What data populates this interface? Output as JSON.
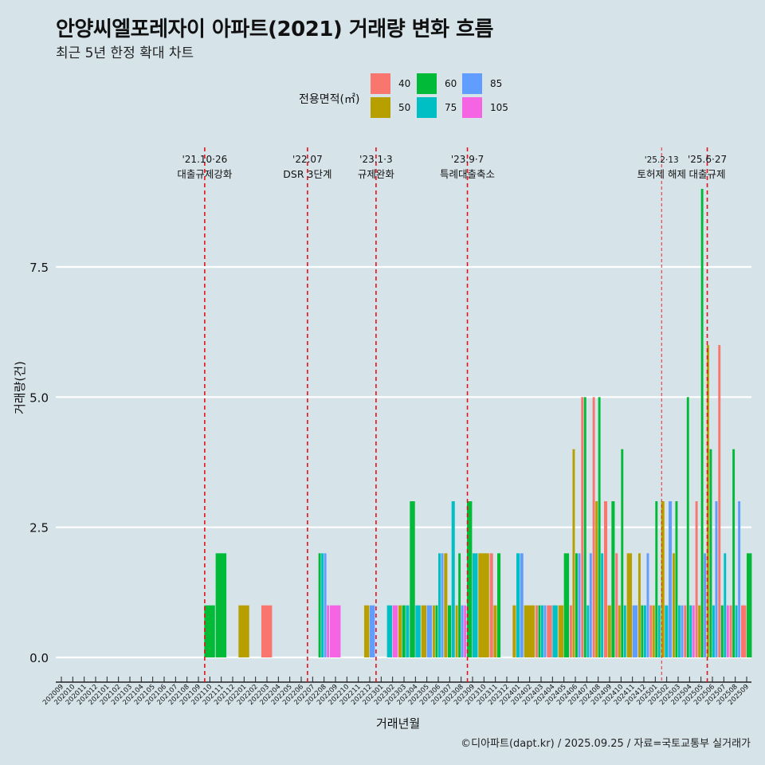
{
  "header": {
    "title": "안양씨엘포레자이 아파트(2021) 거래량 변화 흐름",
    "subtitle": "최근 5년 한정 확대 차트"
  },
  "legend": {
    "title": "전용면적(㎡)",
    "items": [
      {
        "label": "40",
        "color": "#F8766D"
      },
      {
        "label": "50",
        "color": "#B79F00"
      },
      {
        "label": "60",
        "color": "#00BA38"
      },
      {
        "label": "75",
        "color": "#00BFC4"
      },
      {
        "label": "85",
        "color": "#619CFF"
      },
      {
        "label": "105",
        "color": "#F564E3"
      }
    ]
  },
  "caption": "©디아파트(dapt.kr) / 2025.09.25 / 자료=국토교통부 실거래가",
  "chart_data": {
    "type": "bar",
    "title": "안양씨엘포레자이 아파트(2021) 거래량 변화 흐름",
    "subtitle": "최근 5년 한정 확대 차트",
    "xlabel": "거래년월",
    "ylabel": "거래량(건)",
    "ylim": [
      0,
      9
    ],
    "yticks": [
      "0.0",
      "2.5",
      "5.0",
      "7.5"
    ],
    "ytick_values": [
      0,
      2.5,
      5,
      7.5
    ],
    "grid": true,
    "legend_position": "top",
    "categories": [
      "202009",
      "202010",
      "202011",
      "202012",
      "202101",
      "202102",
      "202103",
      "202104",
      "202105",
      "202106",
      "202107",
      "202108",
      "202109",
      "202110",
      "202111",
      "202112",
      "202201",
      "202202",
      "202203",
      "202204",
      "202205",
      "202206",
      "202207",
      "202208",
      "202209",
      "202210",
      "202211",
      "202212",
      "202301",
      "202302",
      "202303",
      "202304",
      "202305",
      "202306",
      "202307",
      "202308",
      "202309",
      "202310",
      "202311",
      "202312",
      "202401",
      "202402",
      "202403",
      "202404",
      "202405",
      "202406",
      "202407",
      "202408",
      "202409",
      "202410",
      "202411",
      "202412",
      "202501",
      "202502",
      "202503",
      "202504",
      "202505",
      "202506",
      "202507",
      "202508",
      "202509"
    ],
    "series_keys": [
      "40",
      "50",
      "60",
      "75",
      "85",
      "105"
    ],
    "data": {
      "202110": {
        "60": 1
      },
      "202111": {
        "60": 2
      },
      "202201": {
        "50": 1
      },
      "202203": {
        "40": 1
      },
      "202208": {
        "60": 2,
        "75": 2,
        "85": 2,
        "105": 1
      },
      "202209": {
        "105": 1
      },
      "202212": {
        "50": 1,
        "85": 1
      },
      "202302": {
        "75": 1,
        "105": 1
      },
      "202303": {
        "50": 1,
        "60": 1,
        "75": 1
      },
      "202304": {
        "60": 3,
        "75": 1
      },
      "202305": {
        "50": 1,
        "85": 1
      },
      "202306": {
        "50": 1,
        "60": 1,
        "75": 2,
        "85": 2
      },
      "202307": {
        "50": 2,
        "60": 1,
        "75": 3
      },
      "202308": {
        "50": 1,
        "60": 2,
        "85": 1,
        "105": 1
      },
      "202309": {
        "60": 3,
        "75": 2
      },
      "202310": {
        "50": 2
      },
      "202311": {
        "40": 2,
        "50": 1,
        "60": 2
      },
      "202401": {
        "50": 1,
        "75": 2,
        "85": 2
      },
      "202402": {
        "50": 1
      },
      "202403": {
        "40": 1,
        "60": 1,
        "75": 1,
        "85": 1
      },
      "202404": {
        "40": 1,
        "75": 1
      },
      "202405": {
        "50": 1,
        "60": 2
      },
      "202406": {
        "40": 1,
        "50": 4,
        "60": 2,
        "85": 2
      },
      "202407": {
        "40": 5,
        "60": 5,
        "75": 1,
        "85": 2
      },
      "202408": {
        "40": 5,
        "50": 3,
        "60": 5,
        "75": 2
      },
      "202409": {
        "40": 3,
        "50": 1,
        "60": 3
      },
      "202410": {
        "40": 2,
        "50": 1,
        "60": 4,
        "75": 1
      },
      "202411": {
        "50": 2,
        "85": 1
      },
      "202412": {
        "50": 2,
        "60": 1,
        "75": 1,
        "85": 2
      },
      "202501": {
        "40": 1,
        "50": 1,
        "60": 3,
        "75": 1
      },
      "202502": {
        "50": 3,
        "75": 1,
        "85": 3
      },
      "202503": {
        "50": 2,
        "60": 3,
        "75": 1,
        "85": 1
      },
      "202504": {
        "40": 1,
        "60": 5,
        "75": 1,
        "105": 1
      },
      "202505": {
        "40": 3,
        "50": 1,
        "60": 9,
        "85": 2
      },
      "202506": {
        "50": 6,
        "60": 4,
        "75": 1,
        "85": 3
      },
      "202507": {
        "40": 6,
        "60": 1,
        "75": 2,
        "105": 1
      },
      "202508": {
        "40": 1,
        "60": 4,
        "75": 1,
        "85": 3
      },
      "202509": {
        "40": 1,
        "60": 2
      }
    },
    "annotations": [
      {
        "month": "202110",
        "date": "'21.10·26",
        "label": "대출규제강화",
        "style": "bold"
      },
      {
        "month": "202207",
        "date": "'22.07",
        "label": "DSR 3단계",
        "style": "bold"
      },
      {
        "month": "202301",
        "date": "'23.1·3",
        "label": "규제완화",
        "style": "bold"
      },
      {
        "month": "202309",
        "date": "'23.9·7",
        "label": "특례대출축소",
        "style": "bold"
      },
      {
        "month": "202502",
        "date": "'25.2·13",
        "label": "토허제 해제",
        "style": "thin"
      },
      {
        "month": "202506",
        "date": "'25.6·27",
        "label": "대출규제",
        "style": "bold"
      }
    ]
  }
}
